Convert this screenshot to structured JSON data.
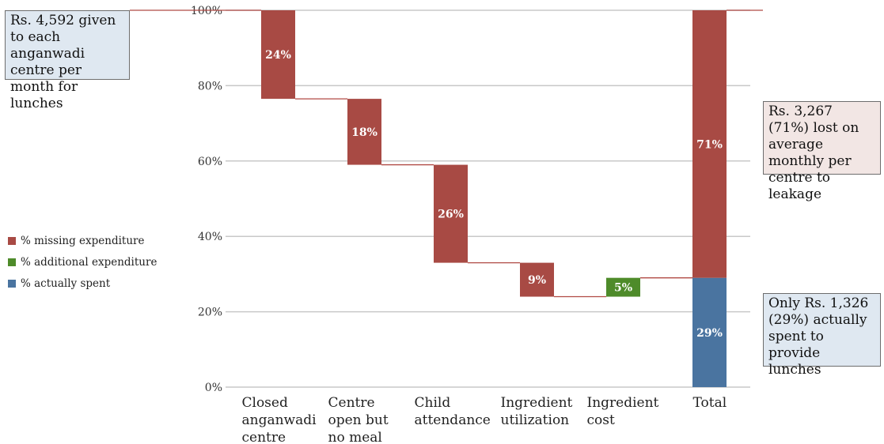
{
  "chart_data": {
    "type": "bar",
    "subtype": "waterfall",
    "categories": [
      "Closed anganwadi centre",
      "Centre open but no meal",
      "Child attendance",
      "Ingredient utilization",
      "Ingredient cost",
      "Total"
    ],
    "category_lines": [
      [
        "Closed",
        "anganwadi",
        "centre"
      ],
      [
        "Centre",
        "open but",
        "no meal"
      ],
      [
        "Child",
        "attendance"
      ],
      [
        "Ingredient",
        "utilization"
      ],
      [
        "Ingredient",
        "cost"
      ],
      [
        "Total"
      ]
    ],
    "steps": [
      {
        "category": "Closed anganwadi centre",
        "start": 100,
        "end": 76.5,
        "value_label": "24%",
        "kind": "missing"
      },
      {
        "category": "Centre open but no meal",
        "start": 76.5,
        "end": 59,
        "value_label": "18%",
        "kind": "missing"
      },
      {
        "category": "Child attendance",
        "start": 59,
        "end": 33,
        "value_label": "26%",
        "kind": "missing"
      },
      {
        "category": "Ingredient utilization",
        "start": 33,
        "end": 24,
        "value_label": "9%",
        "kind": "missing"
      },
      {
        "category": "Ingredient cost",
        "start": 24,
        "end": 29,
        "value_label": "5%",
        "kind": "additional"
      }
    ],
    "total": {
      "category": "Total",
      "spent": 29,
      "spent_label": "29%",
      "missing": 71,
      "missing_label": "71%"
    },
    "ylim": [
      0,
      100
    ],
    "yticks": [
      0,
      20,
      40,
      60,
      80,
      100
    ],
    "ytick_labels": [
      "0%",
      "20%",
      "40%",
      "60%",
      "80%",
      "100%"
    ],
    "grid": true,
    "legend_position": "left",
    "legend": [
      {
        "label": "% missing expenditure",
        "color": "#a84a44"
      },
      {
        "label": "% additional expenditure",
        "color": "#4e8b2a"
      },
      {
        "label": "% actually spent",
        "color": "#4a74a0"
      }
    ],
    "colors": {
      "missing": "#a84a44",
      "additional": "#4e8b2a",
      "spent": "#4a74a0",
      "connector": "#b04a44",
      "grid": "#c8c8c8"
    }
  },
  "annotations": {
    "top_left": "Rs. 4,592 given to each anganwadi centre per month for lunches",
    "right_top": "Rs. 3,267 (71%) lost on average monthly per centre to leakage",
    "right_bottom": "Only Rs. 1,326 (29%) actually spent to provide lunches"
  }
}
